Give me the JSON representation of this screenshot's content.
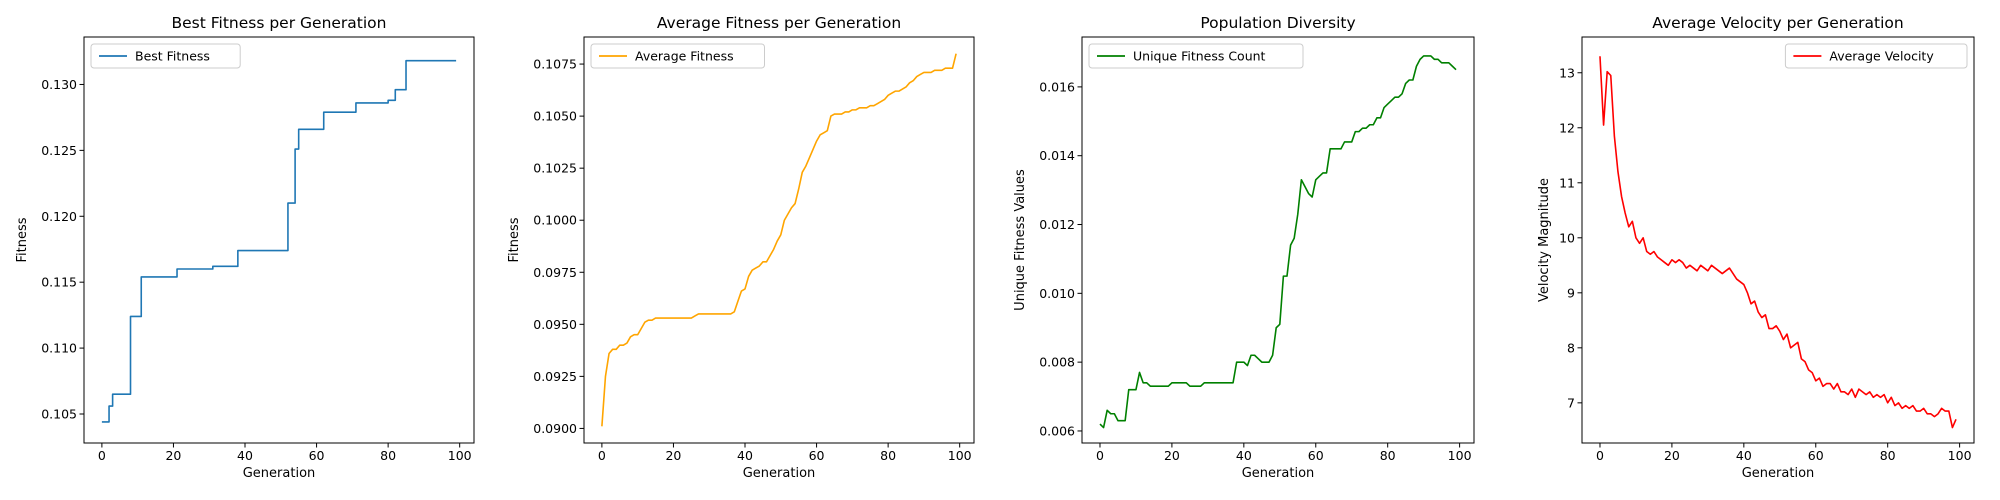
{
  "chart_data": [
    {
      "type": "line",
      "title": "Best Fitness per Generation",
      "xlabel": "Generation",
      "ylabel": "Fitness",
      "xlim": [
        -5,
        104
      ],
      "ylim": [
        0.1028,
        0.1336
      ],
      "xticks": [
        0,
        20,
        40,
        60,
        80,
        100
      ],
      "yticks": [
        0.105,
        0.11,
        0.115,
        0.12,
        0.125,
        0.13
      ],
      "ytick_labels": [
        "0.105",
        "0.110",
        "0.115",
        "0.120",
        "0.125",
        "0.130"
      ],
      "legend_position": "top-left",
      "grid": false,
      "series": [
        {
          "name": "Best Fitness",
          "color": "#1f77b4",
          "step": true,
          "x": [
            0,
            2,
            3,
            7,
            8,
            10,
            11,
            20,
            21,
            30,
            31,
            37,
            38,
            51,
            52,
            53,
            54,
            55,
            61,
            62,
            70,
            71,
            79,
            80,
            81,
            82,
            84,
            85,
            99
          ],
          "y": [
            0.1044,
            0.1056,
            0.1065,
            0.1065,
            0.1124,
            0.1124,
            0.1154,
            0.1154,
            0.116,
            0.116,
            0.1162,
            0.1162,
            0.1174,
            0.1174,
            0.121,
            0.121,
            0.1251,
            0.1266,
            0.1266,
            0.1279,
            0.1279,
            0.1286,
            0.1286,
            0.1288,
            0.1288,
            0.1296,
            0.1296,
            0.1318,
            0.1318
          ]
        }
      ]
    },
    {
      "type": "line",
      "title": "Average Fitness per Generation",
      "xlabel": "Generation",
      "ylabel": "Fitness",
      "xlim": [
        -5,
        104
      ],
      "ylim": [
        0.0893,
        0.1088
      ],
      "xticks": [
        0,
        20,
        40,
        60,
        80,
        100
      ],
      "yticks": [
        0.09,
        0.0925,
        0.095,
        0.0975,
        0.1,
        0.1025,
        0.105,
        0.1075
      ],
      "ytick_labels": [
        "0.0900",
        "0.0925",
        "0.0950",
        "0.0975",
        "0.1000",
        "0.1025",
        "0.1050",
        "0.1075"
      ],
      "legend_position": "top-left",
      "grid": false,
      "series": [
        {
          "name": "Average Fitness",
          "color": "#ffa500",
          "x": [
            0,
            1,
            2,
            3,
            4,
            5,
            6,
            7,
            8,
            9,
            10,
            11,
            12,
            13,
            14,
            15,
            16,
            17,
            18,
            19,
            20,
            21,
            22,
            23,
            24,
            25,
            26,
            27,
            28,
            29,
            30,
            31,
            32,
            33,
            34,
            35,
            36,
            37,
            38,
            39,
            40,
            41,
            42,
            43,
            44,
            45,
            46,
            47,
            48,
            49,
            50,
            51,
            52,
            53,
            54,
            55,
            56,
            57,
            58,
            59,
            60,
            61,
            62,
            63,
            64,
            65,
            66,
            67,
            68,
            69,
            70,
            71,
            72,
            73,
            74,
            75,
            76,
            77,
            78,
            79,
            80,
            81,
            82,
            83,
            84,
            85,
            86,
            87,
            88,
            89,
            90,
            91,
            92,
            93,
            94,
            95,
            96,
            97,
            98,
            99
          ],
          "y": [
            0.0901,
            0.0925,
            0.0936,
            0.0938,
            0.0938,
            0.094,
            0.094,
            0.0941,
            0.0944,
            0.0945,
            0.0945,
            0.0948,
            0.0951,
            0.0952,
            0.0952,
            0.0953,
            0.0953,
            0.0953,
            0.0953,
            0.0953,
            0.0953,
            0.0953,
            0.0953,
            0.0953,
            0.0953,
            0.0953,
            0.0954,
            0.0955,
            0.0955,
            0.0955,
            0.0955,
            0.0955,
            0.0955,
            0.0955,
            0.0955,
            0.0955,
            0.0955,
            0.0956,
            0.0961,
            0.0966,
            0.0967,
            0.0973,
            0.0976,
            0.0977,
            0.0978,
            0.098,
            0.098,
            0.0983,
            0.0986,
            0.099,
            0.0993,
            0.1,
            0.1003,
            0.1006,
            0.1008,
            0.1015,
            0.1023,
            0.1026,
            0.103,
            0.1034,
            0.1038,
            0.1041,
            0.1042,
            0.1043,
            0.105,
            0.1051,
            0.1051,
            0.1051,
            0.1052,
            0.1052,
            0.1053,
            0.1053,
            0.1054,
            0.1054,
            0.1054,
            0.1055,
            0.1055,
            0.1056,
            0.1057,
            0.1058,
            0.106,
            0.1061,
            0.1062,
            0.1062,
            0.1063,
            0.1064,
            0.1066,
            0.1067,
            0.1069,
            0.107,
            0.1071,
            0.1071,
            0.1071,
            0.1072,
            0.1072,
            0.1072,
            0.1073,
            0.1073,
            0.1073,
            0.108
          ]
        }
      ]
    },
    {
      "type": "line",
      "title": "Population Diversity",
      "xlabel": "Generation",
      "ylabel": "Unique Fitness Values",
      "xlim": [
        -5,
        104
      ],
      "ylim": [
        0.00565,
        0.01745
      ],
      "xticks": [
        0,
        20,
        40,
        60,
        80,
        100
      ],
      "yticks": [
        0.006,
        0.008,
        0.01,
        0.012,
        0.014,
        0.016
      ],
      "ytick_labels": [
        "0.006",
        "0.008",
        "0.010",
        "0.012",
        "0.014",
        "0.016"
      ],
      "legend_position": "top-left",
      "grid": false,
      "series": [
        {
          "name": "Unique Fitness Count",
          "color": "#008000",
          "x": [
            0,
            1,
            2,
            3,
            4,
            5,
            6,
            7,
            8,
            9,
            10,
            11,
            12,
            13,
            14,
            15,
            16,
            17,
            18,
            19,
            20,
            21,
            22,
            23,
            24,
            25,
            26,
            27,
            28,
            29,
            30,
            31,
            32,
            33,
            34,
            35,
            36,
            37,
            38,
            39,
            40,
            41,
            42,
            43,
            44,
            45,
            46,
            47,
            48,
            49,
            50,
            51,
            52,
            53,
            54,
            55,
            56,
            57,
            58,
            59,
            60,
            61,
            62,
            63,
            64,
            65,
            66,
            67,
            68,
            69,
            70,
            71,
            72,
            73,
            74,
            75,
            76,
            77,
            78,
            79,
            80,
            81,
            82,
            83,
            84,
            85,
            86,
            87,
            88,
            89,
            90,
            91,
            92,
            93,
            94,
            95,
            96,
            97,
            98,
            99
          ],
          "y": [
            0.0062,
            0.0061,
            0.0066,
            0.0065,
            0.0065,
            0.0063,
            0.0063,
            0.0063,
            0.0072,
            0.0072,
            0.0072,
            0.0077,
            0.0074,
            0.0074,
            0.0073,
            0.0073,
            0.0073,
            0.0073,
            0.0073,
            0.0073,
            0.0074,
            0.0074,
            0.0074,
            0.0074,
            0.0074,
            0.0073,
            0.0073,
            0.0073,
            0.0073,
            0.0074,
            0.0074,
            0.0074,
            0.0074,
            0.0074,
            0.0074,
            0.0074,
            0.0074,
            0.0074,
            0.008,
            0.008,
            0.008,
            0.0079,
            0.0082,
            0.0082,
            0.0081,
            0.008,
            0.008,
            0.008,
            0.0082,
            0.009,
            0.0091,
            0.0105,
            0.0105,
            0.0114,
            0.0116,
            0.0123,
            0.0133,
            0.0131,
            0.0129,
            0.0128,
            0.0133,
            0.0134,
            0.0135,
            0.0135,
            0.0142,
            0.0142,
            0.0142,
            0.0142,
            0.0144,
            0.0144,
            0.0144,
            0.0147,
            0.0147,
            0.0148,
            0.0148,
            0.0149,
            0.0149,
            0.0151,
            0.0151,
            0.0154,
            0.0155,
            0.0156,
            0.0157,
            0.0157,
            0.0158,
            0.0161,
            0.0162,
            0.0162,
            0.0166,
            0.0168,
            0.0169,
            0.0169,
            0.0169,
            0.0168,
            0.0168,
            0.0167,
            0.0167,
            0.0167,
            0.0166,
            0.0165
          ]
        }
      ]
    },
    {
      "type": "line",
      "title": "Average Velocity per Generation",
      "xlabel": "Generation",
      "ylabel": "Velocity Magnitude",
      "xlim": [
        -5,
        104
      ],
      "ylim": [
        6.27,
        13.65
      ],
      "xticks": [
        0,
        20,
        40,
        60,
        80,
        100
      ],
      "yticks": [
        7,
        8,
        9,
        10,
        11,
        12,
        13
      ],
      "ytick_labels": [
        "7",
        "8",
        "9",
        "10",
        "11",
        "12",
        "13"
      ],
      "legend_position": "top-right",
      "grid": false,
      "series": [
        {
          "name": "Average Velocity",
          "color": "#ff0000",
          "x": [
            0,
            1,
            2,
            3,
            4,
            5,
            6,
            7,
            8,
            9,
            10,
            11,
            12,
            13,
            14,
            15,
            16,
            17,
            18,
            19,
            20,
            21,
            22,
            23,
            24,
            25,
            26,
            27,
            28,
            29,
            30,
            31,
            32,
            33,
            34,
            35,
            36,
            37,
            38,
            39,
            40,
            41,
            42,
            43,
            44,
            45,
            46,
            47,
            48,
            49,
            50,
            51,
            52,
            53,
            54,
            55,
            56,
            57,
            58,
            59,
            60,
            61,
            62,
            63,
            64,
            65,
            66,
            67,
            68,
            69,
            70,
            71,
            72,
            73,
            74,
            75,
            76,
            77,
            78,
            79,
            80,
            81,
            82,
            83,
            84,
            85,
            86,
            87,
            88,
            89,
            90,
            91,
            92,
            93,
            94,
            95,
            96,
            97,
            98,
            99
          ],
          "y": [
            13.3,
            12.05,
            13.02,
            12.95,
            11.85,
            11.2,
            10.75,
            10.45,
            10.2,
            10.3,
            10.0,
            9.9,
            10.0,
            9.75,
            9.7,
            9.75,
            9.65,
            9.6,
            9.55,
            9.5,
            9.6,
            9.55,
            9.6,
            9.55,
            9.45,
            9.5,
            9.45,
            9.4,
            9.5,
            9.45,
            9.4,
            9.5,
            9.45,
            9.4,
            9.35,
            9.4,
            9.45,
            9.35,
            9.25,
            9.2,
            9.15,
            9.0,
            8.8,
            8.85,
            8.65,
            8.55,
            8.6,
            8.35,
            8.35,
            8.4,
            8.3,
            8.15,
            8.25,
            8.0,
            8.05,
            8.1,
            7.8,
            7.75,
            7.6,
            7.55,
            7.4,
            7.45,
            7.3,
            7.35,
            7.35,
            7.25,
            7.35,
            7.2,
            7.2,
            7.15,
            7.25,
            7.1,
            7.25,
            7.2,
            7.15,
            7.2,
            7.1,
            7.15,
            7.1,
            7.15,
            7.0,
            7.1,
            6.95,
            7.0,
            6.9,
            6.95,
            6.9,
            6.95,
            6.85,
            6.85,
            6.9,
            6.8,
            6.8,
            6.75,
            6.8,
            6.9,
            6.85,
            6.85,
            6.55,
            6.7
          ]
        }
      ]
    }
  ]
}
